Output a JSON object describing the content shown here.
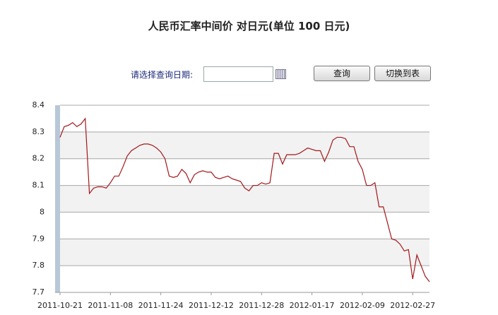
{
  "chart_data": {
    "type": "line",
    "title": "人民币汇率中间价 对日元(单位 100 日元)",
    "categories": [
      "2011-10-21",
      null,
      null,
      null,
      null,
      null,
      null,
      null,
      null,
      null,
      null,
      null,
      "2011-11-08",
      null,
      null,
      null,
      null,
      null,
      null,
      null,
      null,
      null,
      null,
      null,
      "2011-11-24",
      null,
      null,
      null,
      null,
      null,
      null,
      null,
      null,
      null,
      null,
      null,
      "2011-12-12",
      null,
      null,
      null,
      null,
      null,
      null,
      null,
      null,
      null,
      null,
      null,
      "2011-12-28",
      null,
      null,
      null,
      null,
      null,
      null,
      null,
      null,
      null,
      null,
      null,
      "2012-01-17",
      null,
      null,
      null,
      null,
      null,
      null,
      null,
      null,
      null,
      null,
      null,
      "2012-02-09",
      null,
      null,
      null,
      null,
      null,
      null,
      null,
      null,
      null,
      null,
      null,
      "2012-02-27",
      null,
      null,
      null,
      null
    ],
    "values": [
      8.28,
      8.32,
      8.325,
      8.335,
      8.32,
      8.33,
      8.35,
      8.07,
      8.09,
      8.095,
      8.095,
      8.09,
      8.11,
      8.135,
      8.135,
      8.17,
      8.21,
      8.23,
      8.24,
      8.25,
      8.255,
      8.255,
      8.25,
      8.24,
      8.225,
      8.2,
      8.135,
      8.13,
      8.135,
      8.16,
      8.145,
      8.11,
      8.14,
      8.15,
      8.155,
      8.15,
      8.15,
      8.13,
      8.125,
      8.13,
      8.135,
      8.125,
      8.12,
      8.115,
      8.09,
      8.08,
      8.1,
      8.1,
      8.11,
      8.105,
      8.11,
      8.22,
      8.22,
      8.18,
      8.215,
      8.215,
      8.215,
      8.22,
      8.23,
      8.24,
      8.235,
      8.23,
      8.23,
      8.19,
      8.225,
      8.27,
      8.28,
      8.28,
      8.275,
      8.245,
      8.245,
      8.19,
      8.16,
      8.1,
      8.1,
      8.11,
      8.02,
      8.02,
      7.96,
      7.9,
      7.895,
      7.88,
      7.855,
      7.86,
      7.75,
      7.84,
      7.8,
      7.76,
      7.74
    ],
    "color": "#a3171b",
    "ylim": [
      7.7,
      8.4
    ],
    "yticks": [
      8.4,
      8.3,
      8.2,
      8.1,
      8,
      7.9,
      7.8,
      7.7
    ],
    "grid": true
  },
  "form": {
    "date_label": "请选择查询日期:",
    "query_button": "查询",
    "toggle_button": "切换到表"
  }
}
